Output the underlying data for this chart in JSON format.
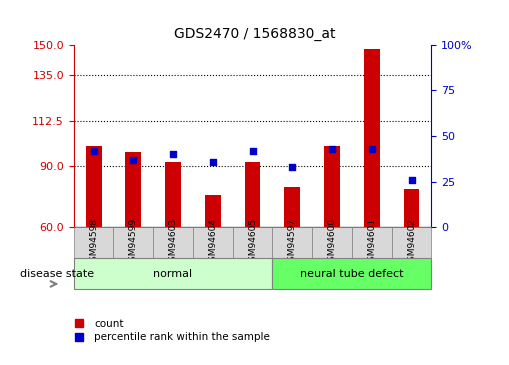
{
  "title": "GDS2470 / 1568830_at",
  "samples": [
    "GSM94598",
    "GSM94599",
    "GSM94603",
    "GSM94604",
    "GSM94605",
    "GSM94597",
    "GSM94600",
    "GSM94601",
    "GSM94602"
  ],
  "count_values": [
    100,
    97,
    92,
    76,
    92,
    80,
    100,
    148,
    79
  ],
  "percentile_values": [
    42,
    37,
    40,
    36,
    42,
    33,
    43,
    43,
    26
  ],
  "groups": [
    {
      "label": "normal",
      "start": 0,
      "end": 5,
      "color": "#ccffcc"
    },
    {
      "label": "neural tube defect",
      "start": 5,
      "end": 9,
      "color": "#66ff66"
    }
  ],
  "ylim_left": [
    60,
    150
  ],
  "ylim_right": [
    0,
    100
  ],
  "yticks_left": [
    60,
    90,
    112.5,
    135,
    150
  ],
  "yticks_right": [
    0,
    25,
    50,
    75,
    100
  ],
  "bar_color": "#cc0000",
  "dot_color": "#0000cc",
  "bar_width": 0.4,
  "grid_color": "#000000",
  "background_color": "#ffffff",
  "plot_bg_color": "#ffffff",
  "xlabel": "",
  "ylabel_left": "",
  "ylabel_right": "",
  "legend_count_label": "count",
  "legend_pct_label": "percentile rank within the sample",
  "disease_state_label": "disease state",
  "normal_color": "#ccffcc",
  "defect_color": "#66ee66",
  "tick_area_color": "#e0e0e0"
}
